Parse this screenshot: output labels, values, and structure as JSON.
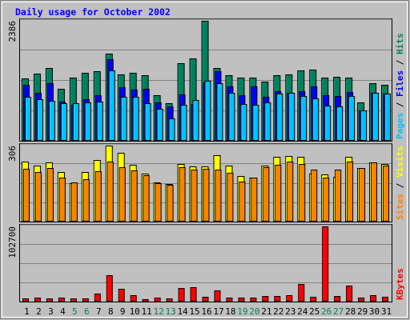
{
  "colors": {
    "background": "#c0c0c0",
    "frame_dark": "#808080",
    "frame_light": "#ffffff",
    "plot_bg": "#c0c0c0",
    "grid": "#808080",
    "title_text": "#0000ff",
    "hits": "#00805c",
    "files": "#0000ff",
    "pages": "#00c0ff",
    "visits": "#ffff00",
    "sites": "#ff8000",
    "kbytes": "#ff0000",
    "weekend_label": "#00805c",
    "weekday_label": "#000000"
  },
  "chart_data": {
    "type": "bar",
    "title": "Daily usage for October 2002",
    "x": [
      1,
      2,
      3,
      4,
      5,
      6,
      7,
      8,
      9,
      10,
      11,
      12,
      13,
      14,
      15,
      16,
      17,
      18,
      19,
      20,
      21,
      22,
      23,
      24,
      25,
      26,
      27,
      28,
      29,
      30,
      31
    ],
    "weekend_days": [
      5,
      6,
      12,
      13,
      19,
      20,
      26,
      27
    ],
    "panels": [
      {
        "name": "top",
        "ymax_label": "2386",
        "ylim": [
          0,
          2386
        ],
        "legend": [
          "Pages",
          "/",
          "Files",
          "/",
          "Hits"
        ],
        "legend_colors": [
          "pages",
          "black",
          "files",
          "black",
          "hits"
        ],
        "series": [
          {
            "name": "Hits",
            "color_key": "hits",
            "values": [
              1240,
              1340,
              1440,
              1040,
              1260,
              1360,
              1380,
              1740,
              1320,
              1360,
              1300,
              900,
              750,
              1540,
              1640,
              2386,
              1450,
              1310,
              1260,
              1260,
              1170,
              1310,
              1320,
              1400,
              1420,
              1260,
              1270,
              1260,
              760,
              1150,
              1120
            ]
          },
          {
            "name": "Files",
            "color_key": "files",
            "values": [
              1110,
              950,
              1150,
              780,
              720,
              820,
              900,
              1630,
              1060,
              1020,
              1030,
              770,
              680,
              920,
              730,
              1160,
              1390,
              1080,
              900,
              1080,
              870,
              990,
              960,
              990,
              1080,
              900,
              890,
              970,
              600,
              960,
              940
            ]
          },
          {
            "name": "Pages",
            "color_key": "pages",
            "values": [
              880,
              830,
              800,
              740,
              740,
              760,
              780,
              1400,
              880,
              880,
              740,
              640,
              440,
              720,
              810,
              1190,
              1140,
              960,
              730,
              720,
              760,
              940,
              950,
              890,
              840,
              700,
              690,
              890,
              600,
              960,
              940
            ]
          }
        ]
      },
      {
        "name": "middle",
        "ymax_label": "306",
        "ylim": [
          0,
          306
        ],
        "legend": [
          "Sites",
          "/",
          "Visits"
        ],
        "legend_colors": [
          "sites",
          "black",
          "visits"
        ],
        "series": [
          {
            "name": "Visits",
            "color_key": "visits",
            "values": [
              240,
              224,
              238,
              201,
              153,
              199,
              247,
              305,
              277,
              229,
              192,
              158,
              152,
              231,
              223,
              223,
              266,
              224,
              183,
              176,
              227,
              260,
              263,
              261,
              192,
              190,
              181,
              260,
              217,
              237,
              233
            ]
          },
          {
            "name": "Sites",
            "color_key": "sites",
            "values": [
              211,
              200,
              216,
              176,
              159,
              171,
              204,
              240,
              220,
              207,
              188,
              156,
              148,
              218,
              210,
              212,
              208,
              196,
              160,
              178,
              220,
              230,
              240,
              232,
              208,
              178,
              208,
              240,
              215,
              239,
              225
            ]
          }
        ]
      },
      {
        "name": "bottom",
        "ymax_label": "102700",
        "ylim": [
          0,
          102700
        ],
        "legend": [
          "KBytes"
        ],
        "legend_colors": [
          "kbytes"
        ],
        "series": [
          {
            "name": "KBytes",
            "color_key": "kbytes",
            "values": [
              4000,
              5000,
              4000,
              5000,
              4000,
              4000,
              11000,
              36000,
              18000,
              9000,
              3000,
              5000,
              4000,
              19000,
              20000,
              7000,
              15000,
              6000,
              5000,
              5000,
              8000,
              8000,
              9000,
              24000,
              7000,
              102700,
              8000,
              22000,
              5000,
              9000,
              7000
            ]
          }
        ]
      }
    ]
  }
}
